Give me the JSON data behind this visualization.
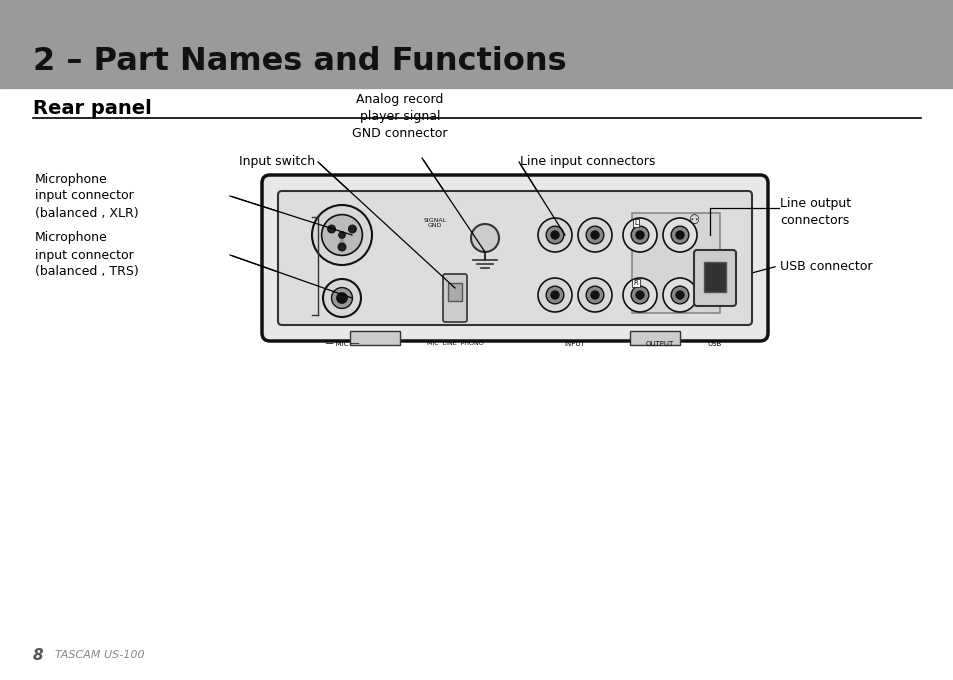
{
  "bg_color": "#ffffff",
  "header_bg": "#999999",
  "header_text": "2 – Part Names and Functions",
  "header_text_color": "#111111",
  "section_title": "Rear panel",
  "footer_page": "8",
  "footer_label": "TASCAM US-100",
  "labels": {
    "mic_xlr": "Microphone\ninput connector\n(balanced , XLR)",
    "mic_trs": "Microphone\ninput connector\n(balanced , TRS)",
    "input_switch": "Input switch",
    "analog_gnd": "Analog record\nplayer signal\nGND connector",
    "line_input": "Line input connectors",
    "line_output": "Line output\nconnectors",
    "usb": "USB connector"
  }
}
